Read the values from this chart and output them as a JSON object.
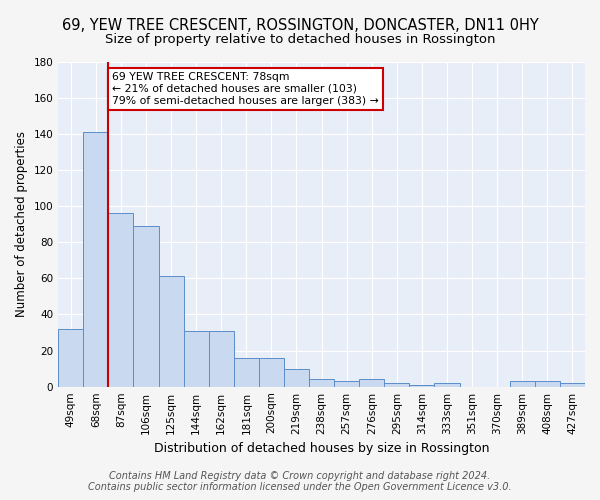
{
  "title": "69, YEW TREE CRESCENT, ROSSINGTON, DONCASTER, DN11 0HY",
  "subtitle": "Size of property relative to detached houses in Rossington",
  "xlabel": "Distribution of detached houses by size in Rossington",
  "ylabel": "Number of detached properties",
  "bar_values": [
    32,
    141,
    96,
    89,
    61,
    31,
    31,
    16,
    16,
    10,
    4,
    3,
    4,
    2,
    1,
    2,
    0,
    0,
    3,
    3,
    2
  ],
  "bin_labels": [
    "49sqm",
    "68sqm",
    "87sqm",
    "106sqm",
    "125sqm",
    "144sqm",
    "162sqm",
    "181sqm",
    "200sqm",
    "219sqm",
    "238sqm",
    "257sqm",
    "276sqm",
    "295sqm",
    "314sqm",
    "333sqm",
    "351sqm",
    "370sqm",
    "389sqm",
    "408sqm",
    "427sqm"
  ],
  "bar_color": "#c9d9f0",
  "bar_edge_color": "#5b8dc9",
  "red_line_x": 1.5,
  "annotation_line1": "69 YEW TREE CRESCENT: 78sqm",
  "annotation_line2": "← 21% of detached houses are smaller (103)",
  "annotation_line3": "79% of semi-detached houses are larger (383) →",
  "annotation_box_color": "#ffffff",
  "annotation_box_edge": "#cc0000",
  "property_line_color": "#cc0000",
  "ylim": [
    0,
    180
  ],
  "yticks": [
    0,
    20,
    40,
    60,
    80,
    100,
    120,
    140,
    160,
    180
  ],
  "bg_color": "#e8eef8",
  "grid_color": "#ffffff",
  "fig_bg_color": "#f5f5f5",
  "footer_text": "Contains HM Land Registry data © Crown copyright and database right 2024.\nContains public sector information licensed under the Open Government Licence v3.0.",
  "title_fontsize": 10.5,
  "subtitle_fontsize": 9.5,
  "ylabel_fontsize": 8.5,
  "xlabel_fontsize": 9,
  "tick_fontsize": 7.5,
  "footer_fontsize": 7
}
